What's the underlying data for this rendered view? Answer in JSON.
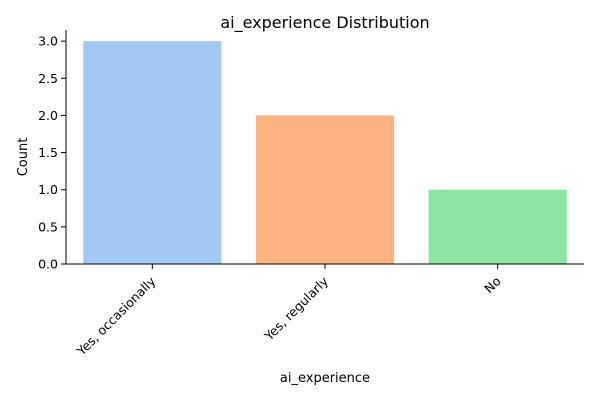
{
  "chart_data": {
    "type": "bar",
    "title": "ai_experience Distribution",
    "xlabel": "ai_experience",
    "ylabel": "Count",
    "categories": [
      "Yes, occasionally",
      "Yes, regularly",
      "No"
    ],
    "values": [
      3,
      2,
      1
    ],
    "ylim": [
      0,
      3.15
    ],
    "yticks": [
      "0.0",
      "0.5",
      "1.0",
      "1.5",
      "2.0",
      "2.5",
      "3.0"
    ],
    "bar_colors": [
      "#a1c9f4",
      "#ffb482",
      "#8de5a1"
    ],
    "grid": false,
    "legend": "none"
  }
}
